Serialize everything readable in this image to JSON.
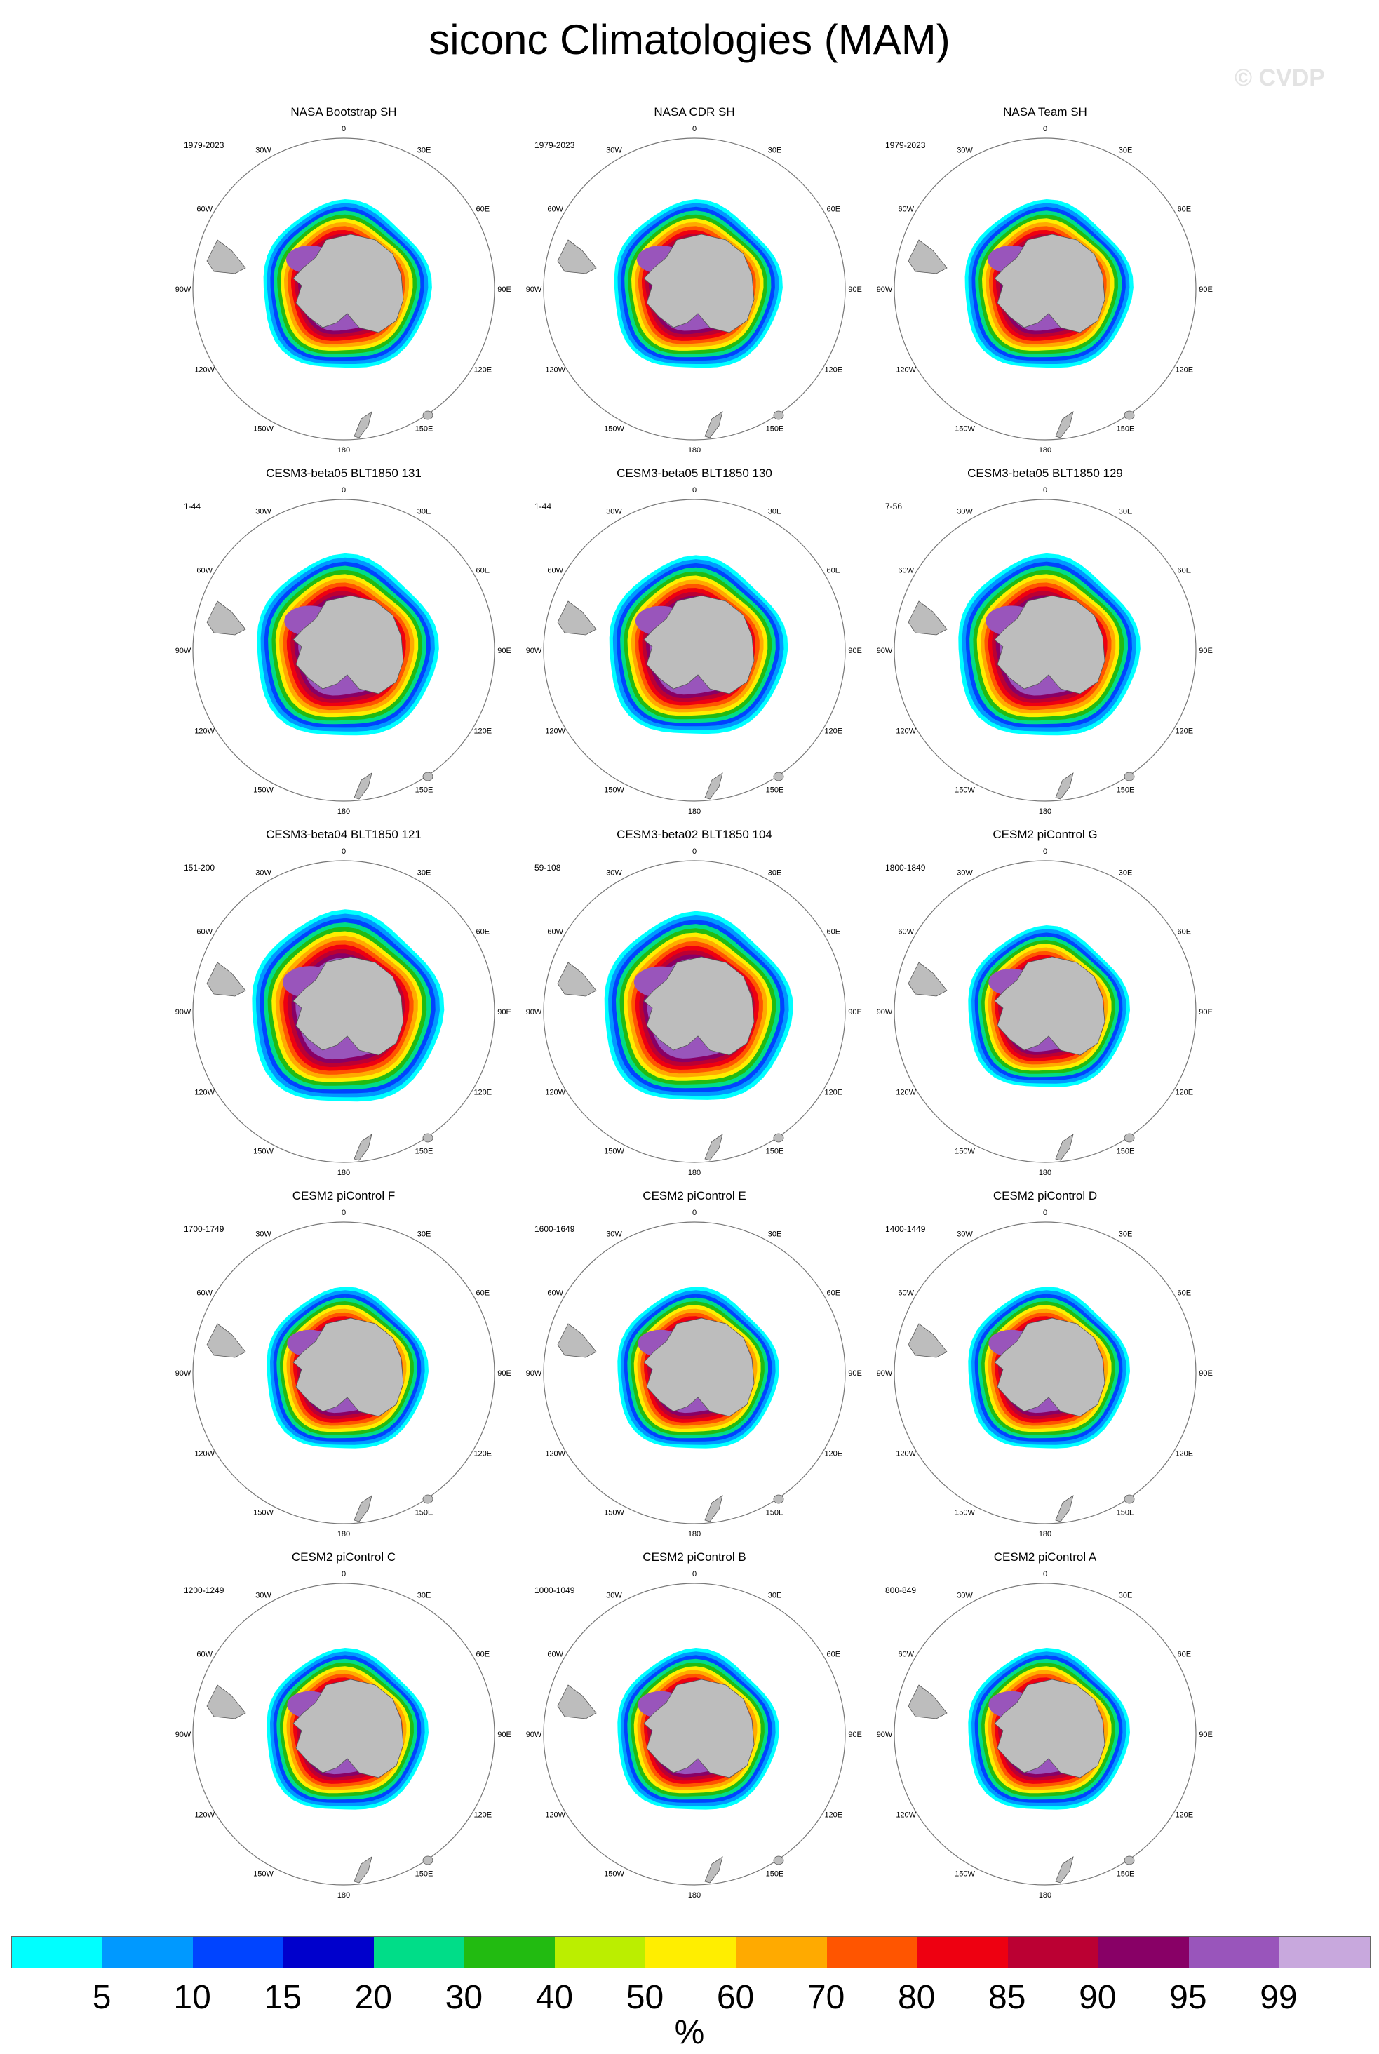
{
  "title": "siconc Climatologies (MAM)",
  "watermark": "© CVDP",
  "map_labels": {
    "deg_0": "0",
    "deg_30E": "30E",
    "deg_60E": "60E",
    "deg_90E": "90E",
    "deg_120E": "120E",
    "deg_150E": "150E",
    "deg_180": "180",
    "deg_150W": "150W",
    "deg_120W": "120W",
    "deg_90W": "90W",
    "deg_60W": "60W",
    "deg_30W": "30W"
  },
  "panels": [
    {
      "title": "NASA Bootstrap SH",
      "years": "1979-2023",
      "extent": 1.0
    },
    {
      "title": "NASA CDR SH",
      "years": "1979-2023",
      "extent": 1.0
    },
    {
      "title": "NASA Team SH",
      "years": "1979-2023",
      "extent": 1.0
    },
    {
      "title": "CESM3-beta05 BLT1850 131",
      "years": "1-44",
      "extent": 1.08
    },
    {
      "title": "CESM3-beta05 BLT1850 130",
      "years": "1-44",
      "extent": 1.06
    },
    {
      "title": "CESM3-beta05 BLT1850 129",
      "years": "7-56",
      "extent": 1.08
    },
    {
      "title": "CESM3-beta04 BLT1850 121",
      "years": "151-200",
      "extent": 1.14
    },
    {
      "title": "CESM3-beta02 BLT1850 104",
      "years": "59-108",
      "extent": 1.12
    },
    {
      "title": "CESM2 piControl G",
      "years": "1800-1849",
      "extent": 0.96
    },
    {
      "title": "CESM2 piControl F",
      "years": "1700-1749",
      "extent": 0.96
    },
    {
      "title": "CESM2 piControl E",
      "years": "1600-1649",
      "extent": 0.96
    },
    {
      "title": "CESM2 piControl D",
      "years": "1400-1449",
      "extent": 0.96
    },
    {
      "title": "CESM2 piControl C",
      "years": "1200-1249",
      "extent": 0.96
    },
    {
      "title": "CESM2 piControl B",
      "years": "1000-1049",
      "extent": 0.96
    },
    {
      "title": "CESM2 piControl A",
      "years": "800-849",
      "extent": 0.96
    }
  ],
  "colorbar": {
    "units": "%",
    "tick_labels": [
      "5",
      "10",
      "15",
      "20",
      "30",
      "40",
      "50",
      "60",
      "70",
      "80",
      "85",
      "90",
      "95",
      "99"
    ],
    "colors": [
      "#00ffff",
      "#0099ff",
      "#0044ff",
      "#0000cc",
      "#00dd88",
      "#22bb11",
      "#bbee00",
      "#ffee00",
      "#ffaa00",
      "#ff5500",
      "#ee0011",
      "#bb0033",
      "#880066",
      "#9955bb",
      "#c8a8dd"
    ]
  },
  "land_color": "#bdbdbd"
}
